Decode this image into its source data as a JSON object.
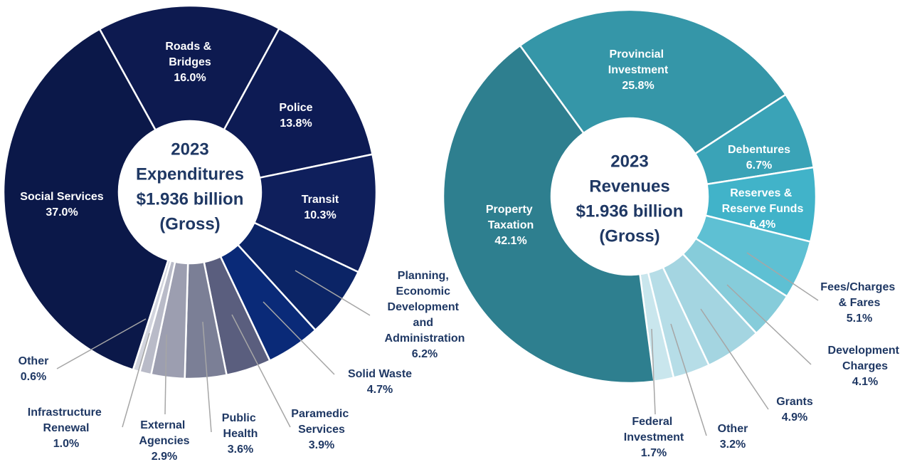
{
  "chart_data": [
    {
      "type": "pie",
      "center_text": [
        "2023",
        "Expenditures",
        "$1.936 billion",
        "(Gross)"
      ],
      "categories": [
        "Roads & Bridges",
        "Police",
        "Transit",
        "Planning, Economic Development and Administration",
        "Solid Waste",
        "Paramedic Services",
        "Public Health",
        "External Agencies",
        "Infrastructure Renewal",
        "Other",
        "Social Services"
      ],
      "values": [
        16.0,
        13.8,
        10.3,
        6.2,
        4.7,
        3.9,
        3.6,
        2.9,
        1.0,
        0.6,
        37.0
      ],
      "value_labels": [
        "16.0%",
        "13.8%",
        "10.3%",
        "6.2%",
        "4.7%",
        "3.9%",
        "3.6%",
        "2.9%",
        "1.0%",
        "0.6%",
        "37.0%"
      ],
      "colors": [
        "#0d1a50",
        "#0d1b54",
        "#0f1f5c",
        "#0b2466",
        "#0a2a78",
        "#5a5e7e",
        "#7b7f96",
        "#9c9eb0",
        "#b9bbc8",
        "#d2d4dd",
        "#0b1849"
      ]
    },
    {
      "type": "pie",
      "center_text": [
        "2023",
        "Revenues",
        "$1.936 billion",
        "(Gross)"
      ],
      "categories": [
        "Provincial Investment",
        "Debentures",
        "Reserves & Reserve Funds",
        "Fees/Charges & Fares",
        "Development Charges",
        "Grants",
        "Other",
        "Federal Investment",
        "Property Taxation"
      ],
      "values": [
        25.8,
        6.7,
        6.4,
        5.1,
        4.1,
        4.9,
        3.2,
        1.7,
        42.1
      ],
      "value_labels": [
        "25.8%",
        "6.7%",
        "6.4%",
        "5.1%",
        "4.1%",
        "4.9%",
        "3.2%",
        "1.7%",
        "42.1%"
      ],
      "colors": [
        "#3596a8",
        "#3aa3b7",
        "#41b3c9",
        "#5ec0d3",
        "#86ccda",
        "#a4d5e1",
        "#b6dde7",
        "#c9e6ed",
        "#2e7f8f"
      ]
    }
  ]
}
